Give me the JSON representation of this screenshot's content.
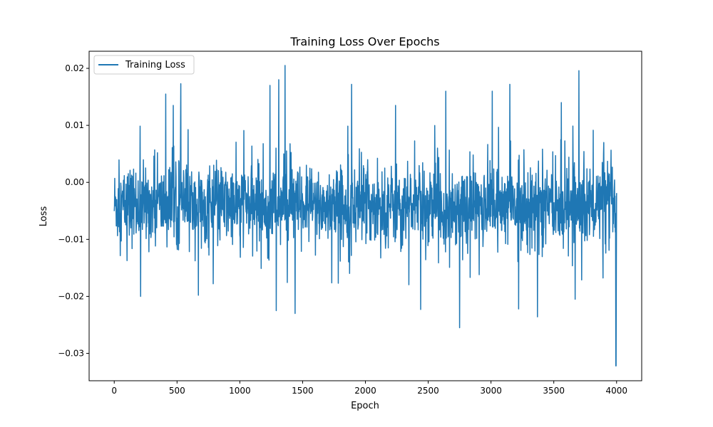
{
  "chart_data": {
    "type": "line",
    "title": "Training Loss Over Epochs",
    "xlabel": "Epoch",
    "ylabel": "Loss",
    "xlim": [
      -200,
      4200
    ],
    "ylim": [
      -0.0348,
      0.023
    ],
    "xticks": [
      0,
      500,
      1000,
      1500,
      2000,
      2500,
      3000,
      3500,
      4000
    ],
    "xtick_labels": [
      "0",
      "500",
      "1000",
      "1500",
      "2000",
      "2500",
      "3000",
      "3500",
      "4000"
    ],
    "yticks": [
      0.02,
      0.01,
      0.0,
      -0.01,
      -0.02,
      -0.03
    ],
    "ytick_labels": [
      "0.02",
      "0.01",
      "0.00",
      "−0.01",
      "−0.02",
      "−0.03"
    ],
    "grid": false,
    "legend": {
      "position": "upper left",
      "entries": [
        "Training Loss"
      ]
    },
    "series": [
      {
        "name": "Training Loss",
        "color": "#1f77b4",
        "n_points": 4001,
        "x_range": [
          0,
          4000
        ],
        "mean": -0.004,
        "noise_std": 0.0045,
        "description": "Highly noisy loss signal fluctuating around about -0.004 with no visible trend",
        "notable_points": [
          {
            "x": 530,
            "y": 0.0173
          },
          {
            "x": 410,
            "y": 0.0155
          },
          {
            "x": 470,
            "y": 0.0135
          },
          {
            "x": 1240,
            "y": 0.017
          },
          {
            "x": 1310,
            "y": 0.018
          },
          {
            "x": 1360,
            "y": 0.0205
          },
          {
            "x": 1890,
            "y": 0.0172
          },
          {
            "x": 2240,
            "y": 0.0135
          },
          {
            "x": 2640,
            "y": 0.016
          },
          {
            "x": 3010,
            "y": 0.016
          },
          {
            "x": 3150,
            "y": 0.0172
          },
          {
            "x": 3700,
            "y": 0.0196
          },
          {
            "x": 3560,
            "y": 0.014
          },
          {
            "x": 210,
            "y": -0.02
          },
          {
            "x": 670,
            "y": -0.0198
          },
          {
            "x": 1290,
            "y": -0.0225
          },
          {
            "x": 1440,
            "y": -0.023
          },
          {
            "x": 2440,
            "y": -0.0223
          },
          {
            "x": 2750,
            "y": -0.0255
          },
          {
            "x": 3220,
            "y": -0.0222
          },
          {
            "x": 3370,
            "y": -0.0236
          },
          {
            "x": 3670,
            "y": -0.0205
          },
          {
            "x": 3995,
            "y": -0.0322
          }
        ]
      }
    ]
  }
}
